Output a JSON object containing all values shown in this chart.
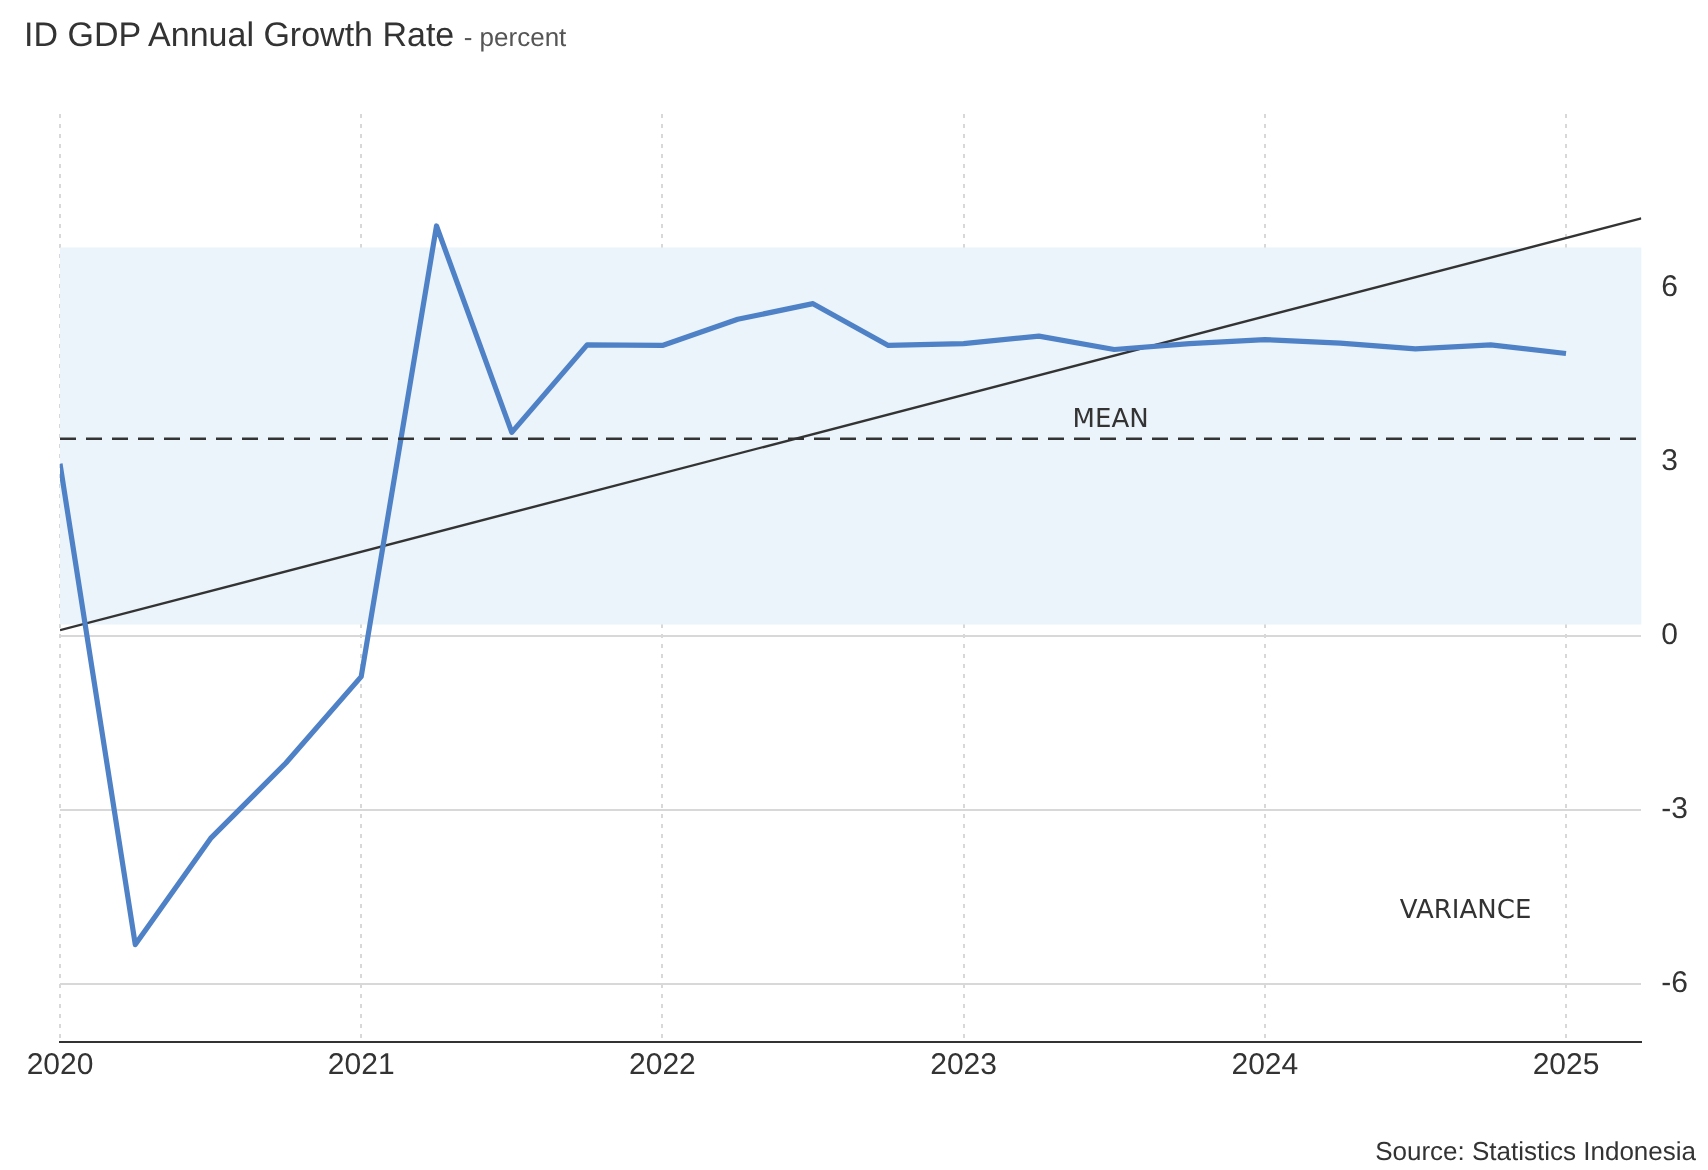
{
  "chart_data": {
    "type": "line",
    "title": "ID GDP Annual Growth Rate",
    "subtitle": "- percent",
    "x": [
      "2020-01-01",
      "2020-04-01",
      "2020-07-01",
      "2020-10-01",
      "2021-01-01",
      "2021-04-01",
      "2021-07-01",
      "2021-10-01",
      "2022-01-01",
      "2022-04-01",
      "2022-07-01",
      "2022-10-01",
      "2023-01-01",
      "2023-04-01",
      "2023-07-01",
      "2023-10-01",
      "2024-01-01",
      "2024-04-01",
      "2024-07-01",
      "2024-10-01",
      "2025-01-01"
    ],
    "series": [
      {
        "color": "#4f81c7",
        "values": [
          2.97,
          -5.32,
          -3.49,
          -2.19,
          -0.7,
          7.07,
          3.51,
          5.02,
          5.01,
          5.46,
          5.73,
          5.01,
          5.04,
          5.17,
          4.94,
          5.04,
          5.11,
          5.05,
          4.95,
          5.02,
          4.87
        ]
      },
      {
        "type": "line",
        "color": "#333333",
        "x": [
          "2020-01-01",
          "2025-04-01"
        ],
        "values": [
          0.1,
          7.2
        ]
      }
    ],
    "xlim": [
      "2020-01-01",
      "2025-04-01"
    ],
    "xticks": [
      {
        "value": "2020-01-01",
        "label": "2020"
      },
      {
        "value": "2021-01-01",
        "label": "2021"
      },
      {
        "value": "2022-01-01",
        "label": "2022"
      },
      {
        "value": "2023-01-01",
        "label": "2023"
      },
      {
        "value": "2024-01-01",
        "label": "2024"
      },
      {
        "value": "2025-01-01",
        "label": "2025"
      }
    ],
    "ylim": [
      -7,
      9
    ],
    "yticks": [
      -6,
      -3,
      0,
      3,
      6
    ],
    "ref_lines": [
      {
        "axis": "y",
        "value": 3.4,
        "label": "MEAN",
        "color": "#333333",
        "line_style": "dashed"
      }
    ],
    "bands": [
      {
        "axis": "y",
        "from": 0.2,
        "to": 6.7,
        "color": "#eaf4fa"
      }
    ],
    "grid": true,
    "marker": "none",
    "line_style": "solid",
    "legend": false,
    "annotations": [
      "VARIANCE",
      "Source: Statistics Indonesia"
    ]
  }
}
